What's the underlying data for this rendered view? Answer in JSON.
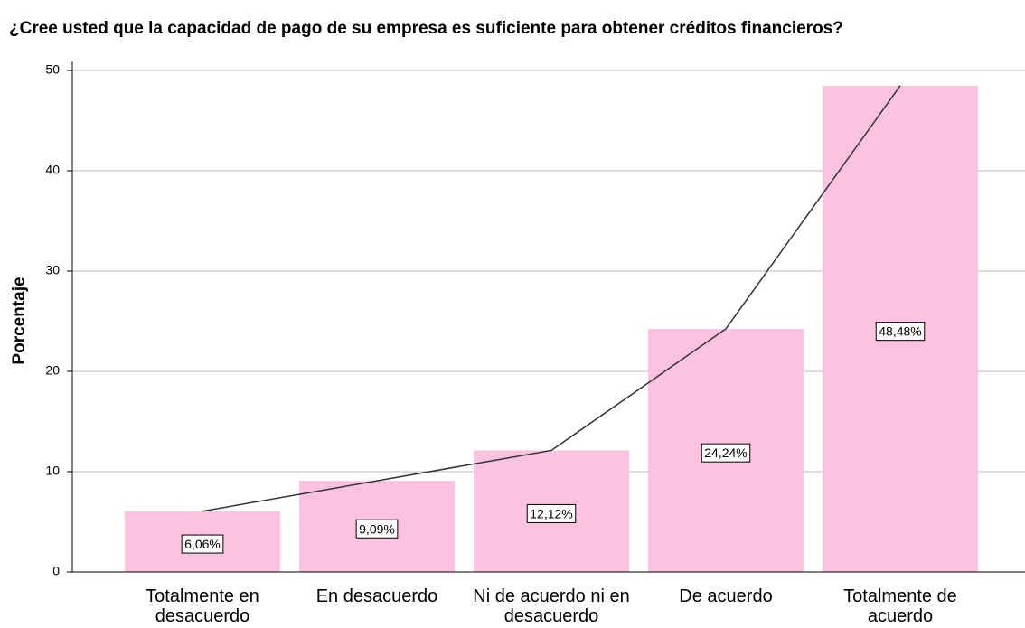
{
  "chart_data": {
    "type": "bar",
    "title": "¿Cree usted que la capacidad de pago de su empresa es suficiente para obtener créditos financieros?",
    "y_label": "Porcentaje",
    "categories": [
      "Totalmente en desacuerdo",
      "En desacuerdo",
      "Ni de acuerdo ni en desacuerdo",
      "De acuerdo",
      "Totalmente de acuerdo"
    ],
    "values": [
      6.06,
      9.09,
      12.12,
      24.24,
      48.48
    ],
    "value_labels": [
      "6,06%",
      "9,09%",
      "12,12%",
      "24,24%",
      "48,48%"
    ],
    "color": "#fcc2e0",
    "line": true,
    "line_color": "#333333",
    "ylim": [
      0,
      50
    ],
    "yticks": [
      0,
      10,
      20,
      30,
      40,
      50
    ],
    "grid": true
  }
}
